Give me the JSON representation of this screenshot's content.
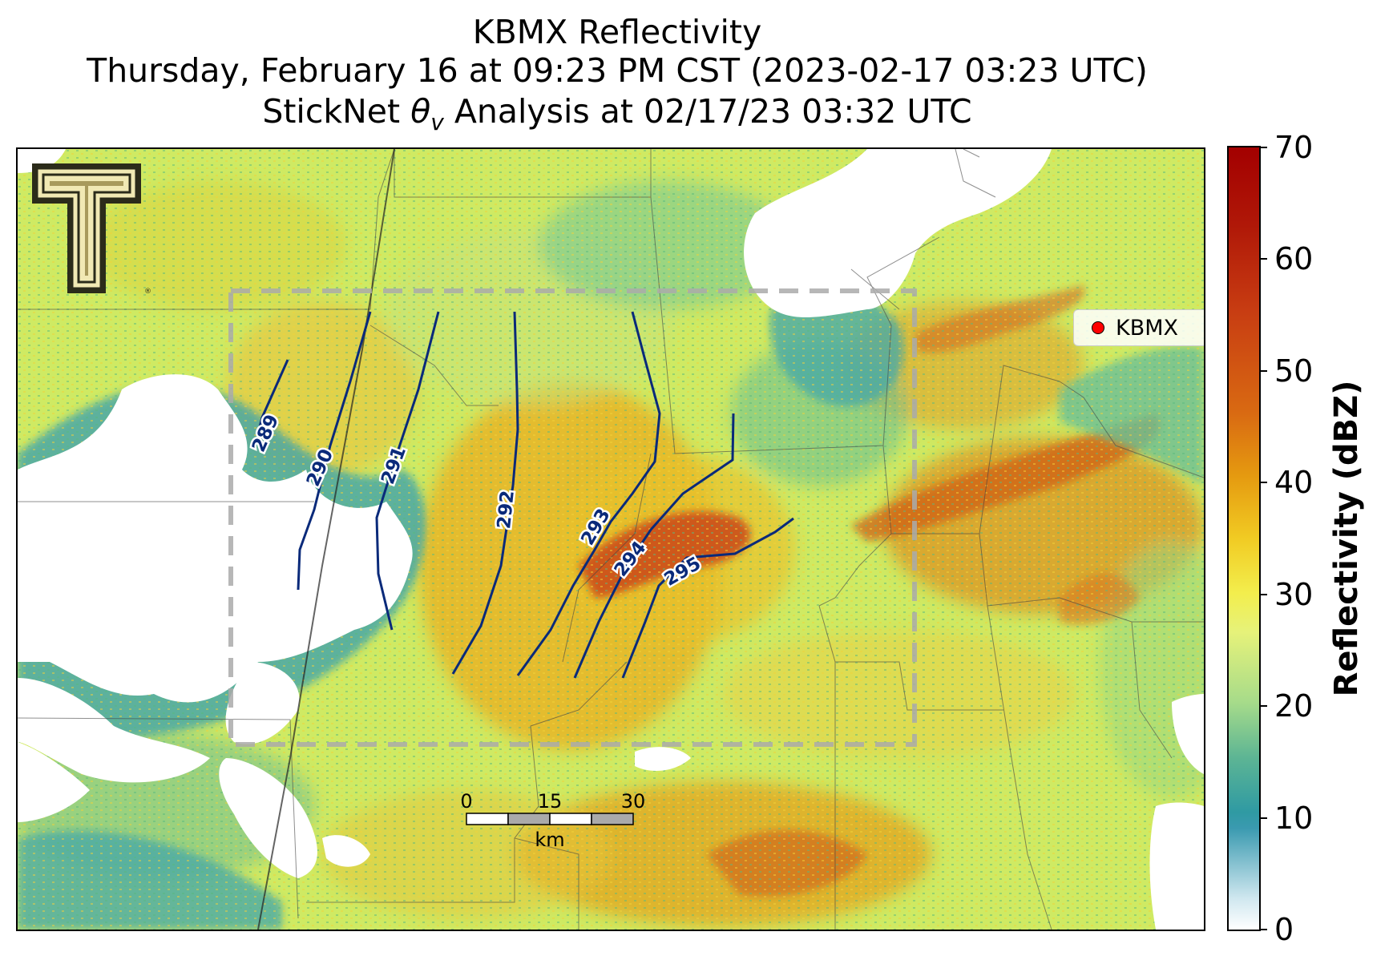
{
  "title": {
    "line1": "KBMX Reflectivity",
    "line2": "Thursday, February 16 at 09:23 PM CST (2023-02-17 03:23 UTC)",
    "line3_prefix": "StickNet ",
    "line3_theta": "θ",
    "line3_sub": "v",
    "line3_suffix": " Analysis at 02/17/23 03:32 UTC"
  },
  "legend": {
    "label": "KBMX",
    "marker_color": "#ff0000"
  },
  "logo": {
    "name": "texas-tech-logo",
    "letter": "T"
  },
  "scale_bar": {
    "ticks": [
      "0",
      "15",
      "30"
    ],
    "unit": "km"
  },
  "contours": {
    "color": "#0a2a7a",
    "levels": [
      "289",
      "290",
      "291",
      "292",
      "293",
      "294",
      "295"
    ]
  },
  "colorbar": {
    "title": "Reflectivity (dBZ)",
    "ticks": [
      "0",
      "10",
      "20",
      "30",
      "40",
      "50",
      "60",
      "70"
    ],
    "range": [
      0,
      70
    ],
    "colors": {
      "low": "#ffffff",
      "mid": "#f3ee4d",
      "high": "#a30000"
    }
  }
}
